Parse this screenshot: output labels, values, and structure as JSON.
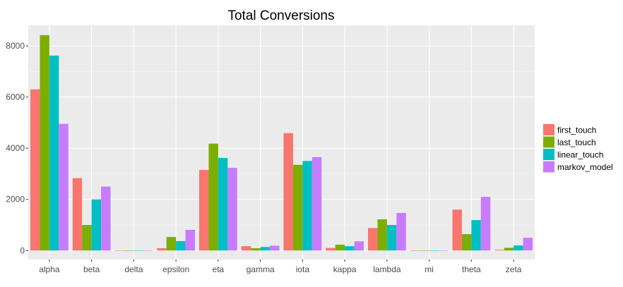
{
  "chart_data": {
    "type": "bar",
    "title": "Total Conversions",
    "xlabel": "",
    "ylabel": "",
    "categories": [
      "alpha",
      "beta",
      "delta",
      "epsilon",
      "eta",
      "gamma",
      "iota",
      "kappa",
      "lambda",
      "mi",
      "theta",
      "zeta"
    ],
    "series": [
      {
        "name": "first_touch",
        "color": "#F8766D",
        "values": [
          6300,
          2830,
          10,
          90,
          3150,
          170,
          4590,
          100,
          880,
          5,
          1600,
          30
        ]
      },
      {
        "name": "last_touch",
        "color": "#7CAE00",
        "values": [
          8420,
          1000,
          5,
          530,
          4180,
          90,
          3350,
          230,
          1220,
          3,
          640,
          110
        ]
      },
      {
        "name": "linear_touch",
        "color": "#00BFC4",
        "values": [
          7620,
          2000,
          8,
          370,
          3620,
          140,
          3500,
          170,
          1000,
          4,
          1190,
          200
        ]
      },
      {
        "name": "markov_model",
        "color": "#C77CFF",
        "values": [
          4950,
          2500,
          6,
          810,
          3230,
          190,
          3650,
          360,
          1470,
          4,
          2100,
          500
        ]
      }
    ],
    "ylim": [
      -350,
      8800
    ],
    "yticks": [
      0,
      2000,
      4000,
      6000,
      8000
    ],
    "grid": true,
    "legend": "right"
  }
}
